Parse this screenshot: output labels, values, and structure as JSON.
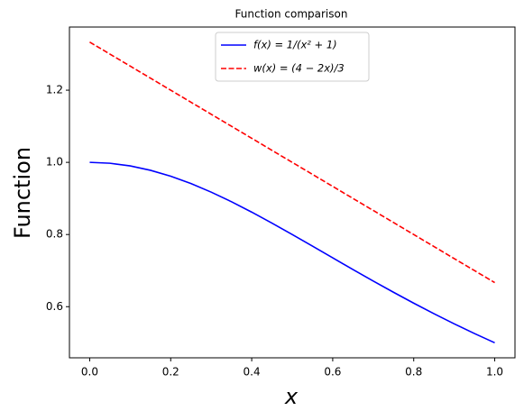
{
  "chart_data": {
    "type": "line",
    "title": "Function comparison",
    "x_label": "x",
    "y_label": "Function",
    "x": [
      0,
      0.05,
      0.1,
      0.15,
      0.2,
      0.25,
      0.3,
      0.35,
      0.4,
      0.45,
      0.5,
      0.55,
      0.6,
      0.65,
      0.7,
      0.75,
      0.8,
      0.85,
      0.9,
      0.95,
      1
    ],
    "series": [
      {
        "name": "f(x) = 1/(x² + 1)",
        "color": "#0000ff",
        "dash": "solid",
        "values": [
          1,
          0.99751,
          0.990099,
          0.977995,
          0.961538,
          0.941176,
          0.917431,
          0.890869,
          0.862069,
          0.831601,
          0.8,
          0.767754,
          0.735294,
          0.702988,
          0.671141,
          0.64,
          0.609756,
          0.580552,
          0.552486,
          0.525624,
          0.5
        ]
      },
      {
        "name": "w(x) = (4 − 2x)/3",
        "color": "#ff0000",
        "dash": "dashed",
        "values": [
          1.3333,
          1.3,
          1.2667,
          1.2333,
          1.2,
          1.1667,
          1.1333,
          1.1,
          1.0667,
          1.0333,
          1.0,
          0.9667,
          0.9333,
          0.9,
          0.8667,
          0.8333,
          0.8,
          0.7667,
          0.7333,
          0.7,
          0.6667
        ]
      }
    ],
    "xlim": [
      -0.05,
      1.05
    ],
    "ylim": [
      0.4583,
      1.375
    ],
    "xticks": [
      {
        "value": 0,
        "label": "0.0"
      },
      0.2,
      0.4,
      0.6,
      0.8,
      {
        "value": 1,
        "label": "1.0"
      }
    ],
    "yticks": [
      0.6,
      0.8,
      {
        "value": 1,
        "label": "1.0"
      },
      1.2
    ],
    "legend": "upper center"
  }
}
